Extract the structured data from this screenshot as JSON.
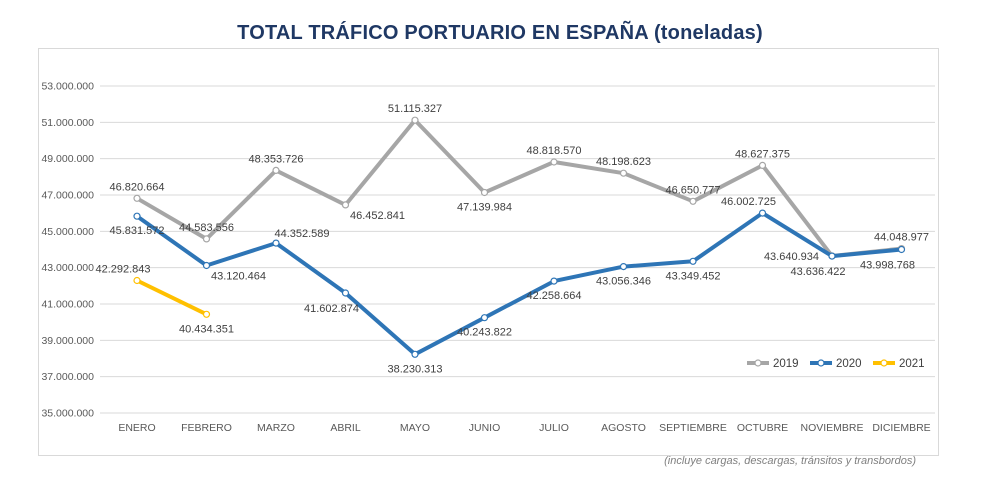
{
  "title": "TOTAL TRÁFICO PORTUARIO EN ESPAÑA (toneladas)",
  "footnote": "(incluye cargas, descargas, tránsitos y transbordos)",
  "colors": {
    "title": "#1F3864",
    "grid": "#D9D9D9",
    "border": "#D9D9D9",
    "axis_text": "#595959",
    "data_label": "#404040",
    "legend_text": "#404040",
    "footnote": "#7F7F7F"
  },
  "legend": {
    "position": "inside-bottom-right",
    "items": [
      "2019",
      "2020",
      "2021"
    ]
  },
  "chart_data": {
    "type": "line",
    "title": "TOTAL TRÁFICO PORTUARIO EN ESPAÑA (toneladas)",
    "xlabel": "",
    "ylabel": "",
    "grid": true,
    "categories": [
      "ENERO",
      "FEBRERO",
      "MARZO",
      "ABRIL",
      "MAYO",
      "JUNIO",
      "JULIO",
      "AGOSTO",
      "SEPTIEMBRE",
      "OCTUBRE",
      "NOVIEMBRE",
      "DICIEMBRE"
    ],
    "y_axis": {
      "min": 35000000,
      "max": 53000000,
      "step": 2000000,
      "tick_labels": [
        "35.000.000",
        "37.000.000",
        "39.000.000",
        "41.000.000",
        "43.000.000",
        "45.000.000",
        "47.000.000",
        "49.000.000",
        "51.000.000",
        "53.000.000"
      ]
    },
    "series": [
      {
        "name": "2019",
        "color": "#A6A6A6",
        "values": [
          46820664,
          44583556,
          48353726,
          46452841,
          51115327,
          47139984,
          48818570,
          48198623,
          46650777,
          48627375,
          43640934,
          44048977
        ],
        "label_positions": [
          "above",
          "above",
          "above",
          "below-right",
          "above",
          "below",
          "above",
          "above",
          "above",
          "above",
          "left",
          "above"
        ]
      },
      {
        "name": "2020",
        "color": "#2E75B6",
        "values": [
          45831572,
          43120464,
          44352589,
          41602874,
          38230313,
          40243822,
          42258664,
          43056346,
          43349452,
          46002725,
          43636422,
          43998768
        ],
        "label_positions": [
          "below",
          "below-right",
          "above-right",
          "below-left",
          "below",
          "below",
          "below",
          "below",
          "below",
          "above-left",
          "below-left",
          "below-left"
        ]
      },
      {
        "name": "2021",
        "color": "#FFC000",
        "values": [
          42292843,
          40434351
        ],
        "label_positions": [
          "above-left",
          "below"
        ]
      }
    ]
  }
}
